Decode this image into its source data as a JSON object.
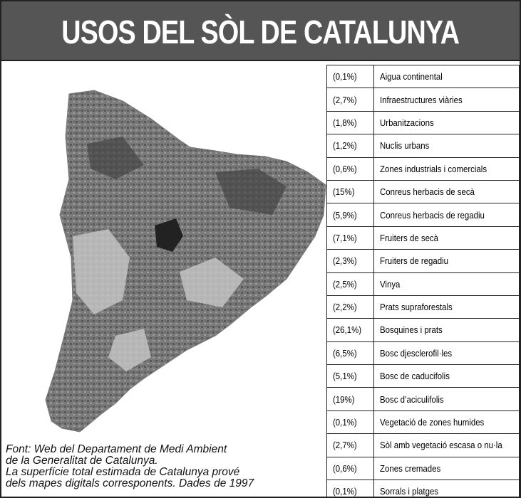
{
  "header": {
    "title": "USOS DEL SÒL DE CATALUNYA"
  },
  "legend": {
    "rows": [
      [
        "(0,1%)",
        "Aigua continental"
      ],
      [
        "(2,7%)",
        "Infraestructures viàries"
      ],
      [
        "(1,8%)",
        "Urbanitzacions"
      ],
      [
        "(1,2%)",
        "Nuclis urbans"
      ],
      [
        "(0,6%)",
        "Zones industrials i comercials"
      ],
      [
        "(15%)",
        "Conreus herbacis de secà"
      ],
      [
        "(5,9%)",
        "Conreus herbacis de regadiu"
      ],
      [
        "(7,1%)",
        "Fruiters de secà"
      ],
      [
        "(2,3%)",
        "Fruiters de regadiu"
      ],
      [
        "(2,5%)",
        "Vinya"
      ],
      [
        "(2,2%)",
        "Prats supraforestals"
      ],
      [
        "(26,1%)",
        "Bosquines i prats"
      ],
      [
        "(6,5%)",
        "Bosc djesclerofil·les"
      ],
      [
        "(5,1%)",
        "Bosc de caducifolis"
      ],
      [
        "(19%)",
        "Bosc d’aciculifolis"
      ],
      [
        "(0,1%)",
        "Vegetació de zones humides"
      ],
      [
        "(2,7%)",
        "Sòl amb vegetació escasa o nu·la"
      ],
      [
        "(0,6%)",
        "Zones cremades"
      ],
      [
        "(0,1%)",
        "Sorrals i platges"
      ]
    ]
  },
  "footnote": {
    "lines": [
      "Font: Web del Departament de Medi Ambient",
      "de la Generalitat de Catalunya.",
      "La superfície total estimada de Catalunya prové",
      "dels mapes digitals corresponents. Dades de 1997"
    ]
  }
}
